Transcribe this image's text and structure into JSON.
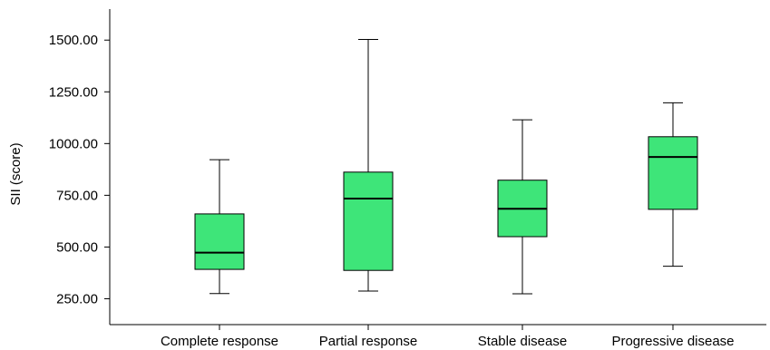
{
  "chart_data": {
    "type": "box",
    "ylabel": "SII (score)",
    "xlabel": "",
    "ylim": [
      125,
      1650
    ],
    "yticks": [
      250,
      500,
      750,
      1000,
      1250,
      1500
    ],
    "ytick_labels": [
      "250.00",
      "500.00",
      "750.00",
      "1000.00",
      "1250.00",
      "1500.00"
    ],
    "grid": false,
    "categories": [
      "Complete response",
      "Partial response",
      "Stable disease",
      "Progressive disease"
    ],
    "boxes": [
      {
        "min": 275,
        "q1": 392,
        "median": 473,
        "q3": 660,
        "max": 922
      },
      {
        "min": 287,
        "q1": 387,
        "median": 734,
        "q3": 862,
        "max": 1503
      },
      {
        "min": 274,
        "q1": 550,
        "median": 685,
        "q3": 823,
        "max": 1115
      },
      {
        "min": 407,
        "q1": 682,
        "median": 935,
        "q3": 1033,
        "max": 1197
      }
    ],
    "box_color": "#3ee579",
    "line_color": "#000000"
  }
}
